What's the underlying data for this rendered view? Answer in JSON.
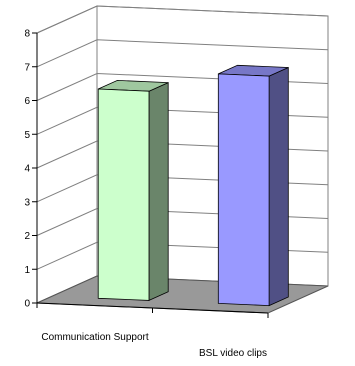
{
  "chart_data": {
    "type": "bar",
    "style": "3d-column",
    "categories": [
      "Communication Support",
      "BSL video clips"
    ],
    "values": [
      6.2,
      6.8
    ],
    "colors": [
      "#ccffcc",
      "#9999ff"
    ],
    "ylim": [
      0,
      8
    ],
    "yticks": [
      "0",
      "1",
      "2",
      "3",
      "4",
      "5",
      "6",
      "7",
      "8"
    ],
    "grid": true,
    "legend": "none",
    "title": "",
    "xlabel": "",
    "ylabel": ""
  }
}
